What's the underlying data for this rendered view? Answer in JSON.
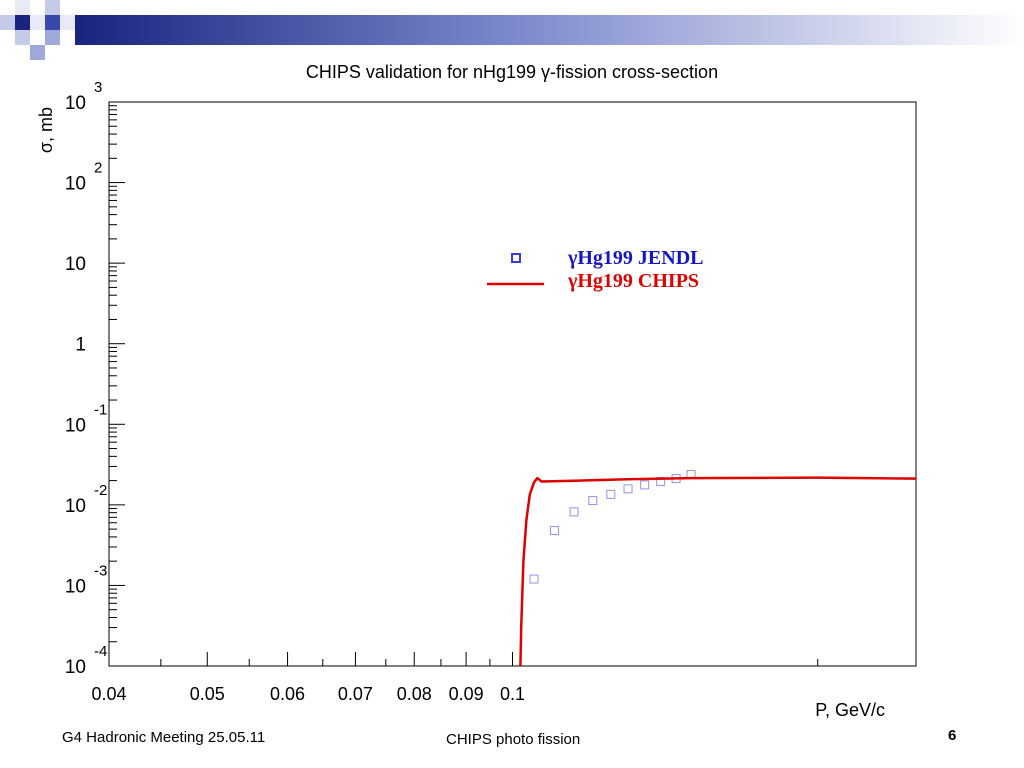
{
  "slide": {
    "footer_left": "G4 Hadronic Meeting 25.05.11",
    "footer_center": "CHIPS photo fission",
    "slide_number": "6",
    "header_colors": [
      "#1a237e",
      "#3949ab",
      "#9fa8da",
      "#e8eaf6"
    ]
  },
  "chart_data": {
    "type": "line",
    "title": "CHIPS validation for nHg199 γ-fission cross-section",
    "xlabel": "P, GeV/c",
    "ylabel": "σ, mb",
    "x_scale": "log",
    "y_scale": "log",
    "xlim": [
      0.04,
      0.25
    ],
    "ylim": [
      0.0001,
      1000
    ],
    "grid": false,
    "legend_position": "top-right",
    "x_ticks": [
      {
        "value": 0.04,
        "label": "0.04"
      },
      {
        "value": 0.05,
        "label": "0.05"
      },
      {
        "value": 0.06,
        "label": "0.06"
      },
      {
        "value": 0.07,
        "label": "0.07"
      },
      {
        "value": 0.08,
        "label": "0.08"
      },
      {
        "value": 0.09,
        "label": "0.09"
      },
      {
        "value": 0.1,
        "label": "0.1"
      }
    ],
    "y_ticks": [
      {
        "value": 1000,
        "base": "10",
        "exp": "3"
      },
      {
        "value": 100,
        "base": "10",
        "exp": "2"
      },
      {
        "value": 10,
        "base": "10",
        "exp": ""
      },
      {
        "value": 1,
        "base": "1",
        "exp": ""
      },
      {
        "value": 0.1,
        "base": "10",
        "exp": "-1"
      },
      {
        "value": 0.01,
        "base": "10",
        "exp": "-2"
      },
      {
        "value": 0.001,
        "base": "10",
        "exp": "-3"
      },
      {
        "value": 0.0001,
        "base": "10",
        "exp": "-4"
      }
    ],
    "series": [
      {
        "name": "γHg199 JENDL",
        "kind": "scatter",
        "marker": "open-square",
        "color": "#3b3bcc",
        "points": [
          [
            0.105,
            0.0012
          ],
          [
            0.11,
            0.0048
          ],
          [
            0.115,
            0.0082
          ],
          [
            0.12,
            0.0113
          ],
          [
            0.125,
            0.0135
          ],
          [
            0.13,
            0.0158
          ],
          [
            0.135,
            0.0177
          ],
          [
            0.14,
            0.0195
          ],
          [
            0.145,
            0.0212
          ],
          [
            0.15,
            0.0238
          ]
        ]
      },
      {
        "name": "γHg199 CHIPS",
        "kind": "line",
        "color": "#e00000",
        "points": [
          [
            0.1018,
            6e-05
          ],
          [
            0.102,
            0.0003
          ],
          [
            0.1025,
            0.002
          ],
          [
            0.1032,
            0.0065
          ],
          [
            0.104,
            0.0135
          ],
          [
            0.105,
            0.019
          ],
          [
            0.1058,
            0.0215
          ],
          [
            0.1068,
            0.0195
          ],
          [
            0.115,
            0.0199
          ],
          [
            0.13,
            0.0208
          ],
          [
            0.15,
            0.0215
          ],
          [
            0.2,
            0.0218
          ],
          [
            0.25,
            0.0212
          ]
        ]
      }
    ]
  }
}
